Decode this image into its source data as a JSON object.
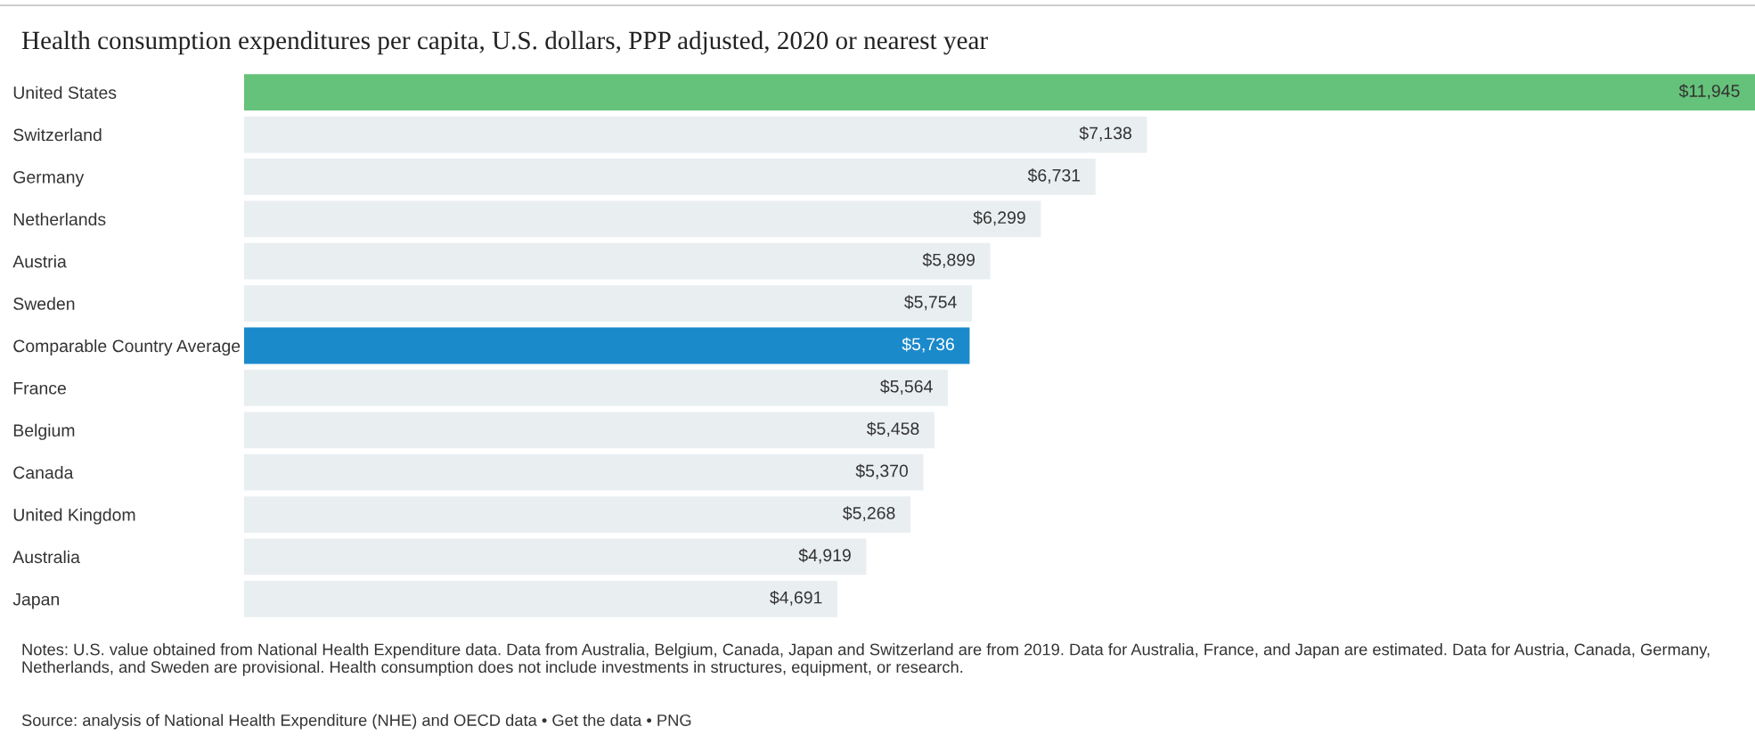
{
  "chart_data": {
    "type": "bar",
    "orientation": "horizontal",
    "title": "Health consumption expenditures per capita, U.S. dollars, PPP adjusted, 2020 or nearest year",
    "categories": [
      "United States",
      "Switzerland",
      "Germany",
      "Netherlands",
      "Austria",
      "Sweden",
      "Comparable Country Average",
      "France",
      "Belgium",
      "Canada",
      "United Kingdom",
      "Australia",
      "Japan"
    ],
    "values": [
      11945,
      7138,
      6731,
      6299,
      5899,
      5754,
      5736,
      5564,
      5458,
      5370,
      5268,
      4919,
      4691
    ],
    "value_labels": [
      "$11,945",
      "$7,138",
      "$6,731",
      "$6,299",
      "$5,899",
      "$5,754",
      "$5,736",
      "$5,564",
      "$5,458",
      "$5,370",
      "$5,268",
      "$4,919",
      "$4,691"
    ],
    "colors": [
      "#65c27a",
      "#e9eef1",
      "#e9eef1",
      "#e9eef1",
      "#e9eef1",
      "#e9eef1",
      "#1b8acb",
      "#e9eef1",
      "#e9eef1",
      "#e9eef1",
      "#e9eef1",
      "#e9eef1",
      "#e9eef1"
    ],
    "annotations": [
      "Notes: U.S. value obtained from National Health Expenditure data. Data from Australia, Belgium, Canada, Japan and Switzerland are from 2019. Data for Australia, France, and Japan are estimated. Data for Austria, Canada, Germany, Netherlands, and Sweden are provisional. Health consumption does not include investments in structures, equipment, or research.",
      "Source: analysis of National Health Expenditure (NHE) and OECD data • Get the data • PNG"
    ],
    "grid": false,
    "legend": false
  }
}
